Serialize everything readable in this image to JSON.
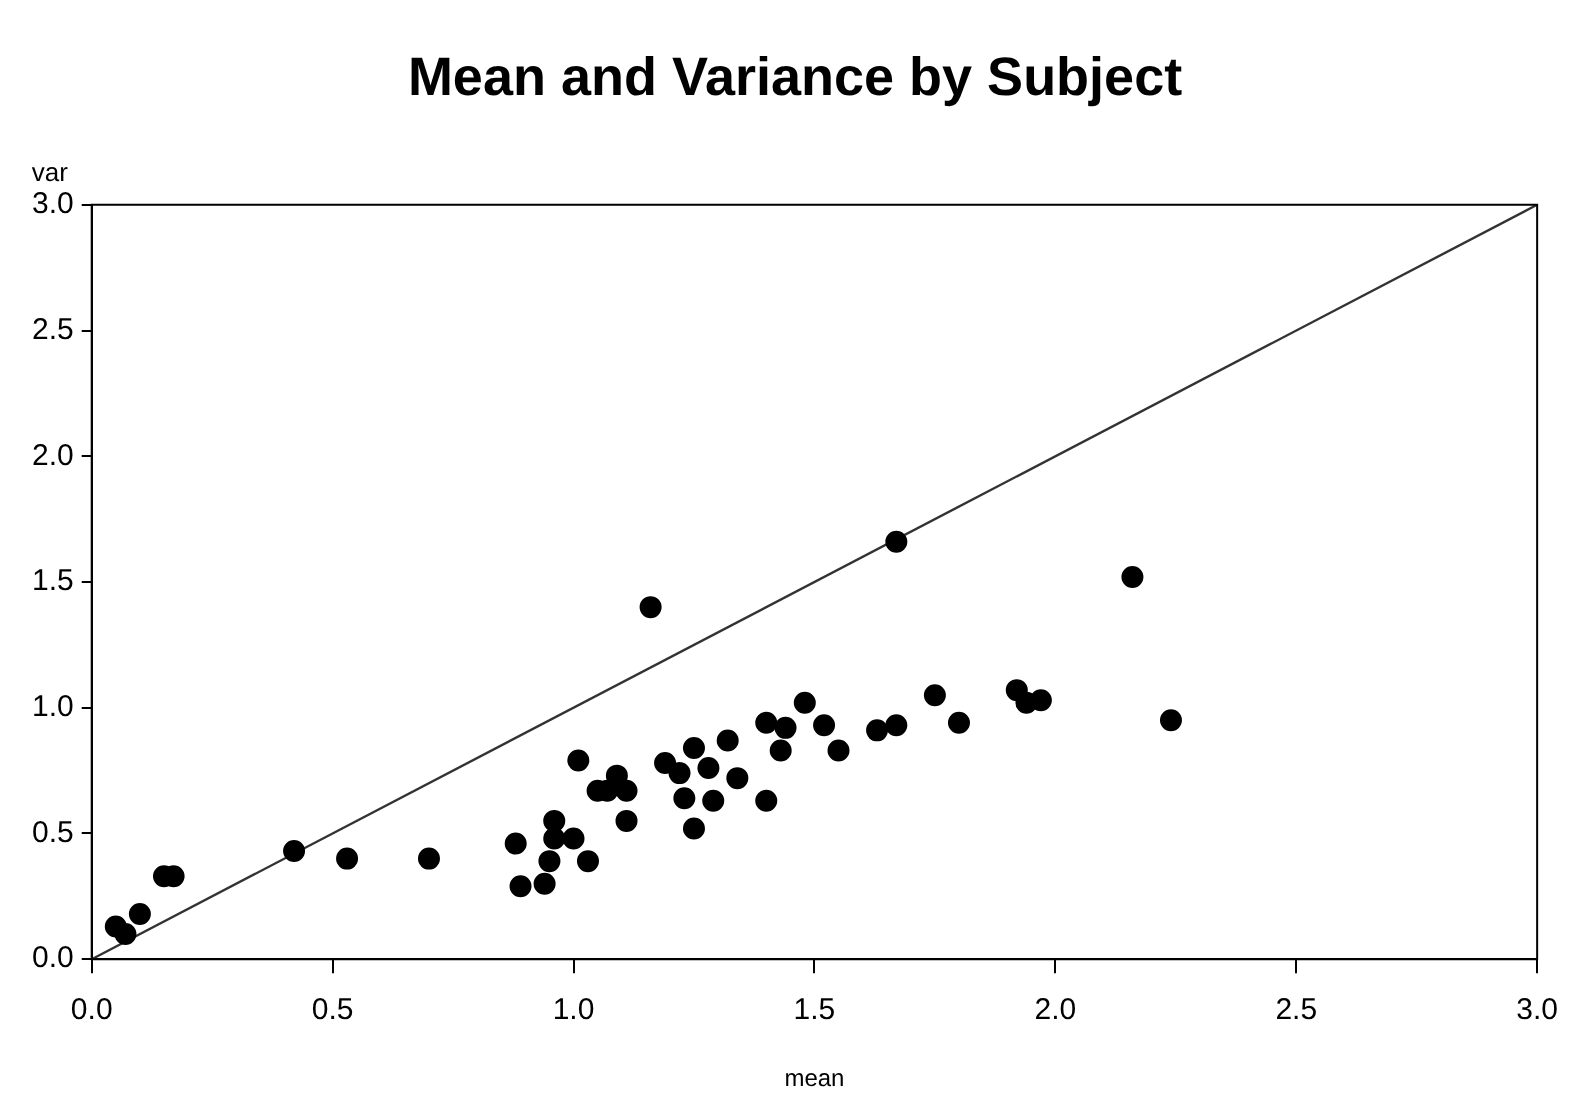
{
  "chart_data": {
    "type": "scatter",
    "title": "Mean and Variance by Subject",
    "xlabel": "mean",
    "ylabel": "var",
    "xlim": [
      0,
      3
    ],
    "ylim": [
      0,
      3
    ],
    "xticks": [
      {
        "value": 0,
        "label": "0.0"
      },
      {
        "value": 0.5,
        "label": "0.5"
      },
      {
        "value": 1,
        "label": "1.0"
      },
      {
        "value": 1.5,
        "label": "1.5"
      },
      {
        "value": 2,
        "label": "2.0"
      },
      {
        "value": 2.5,
        "label": "2.5"
      },
      {
        "value": 3,
        "label": "3.0"
      }
    ],
    "yticks": [
      {
        "value": 0,
        "label": "0.0"
      },
      {
        "value": 0.5,
        "label": "0.5"
      },
      {
        "value": 1,
        "label": "1.0"
      },
      {
        "value": 1.5,
        "label": "1.5"
      },
      {
        "value": 2,
        "label": "2.0"
      },
      {
        "value": 2.5,
        "label": "2.5"
      },
      {
        "value": 3,
        "label": "3.0"
      }
    ],
    "grid": false,
    "legend": false,
    "marker": "circle",
    "series": [
      {
        "type": "scatter",
        "color": "#000000",
        "x": [
          0.05,
          0.07,
          0.1,
          0.15,
          0.17,
          0.42,
          0.53,
          0.7,
          0.88,
          0.89,
          0.94,
          0.95,
          0.96,
          0.96,
          1.0,
          1.03,
          1.01,
          1.05,
          1.07,
          1.09,
          1.11,
          1.11,
          1.16,
          1.19,
          1.22,
          1.25,
          1.28,
          1.23,
          1.29,
          1.25,
          1.32,
          1.34,
          1.4,
          1.44,
          1.43,
          1.4,
          1.48,
          1.52,
          1.55,
          1.63,
          1.67,
          1.67,
          1.75,
          1.8,
          1.92,
          1.94,
          1.97,
          2.16,
          2.24
        ],
        "values": [
          0.13,
          0.1,
          0.18,
          0.33,
          0.33,
          0.43,
          0.4,
          0.4,
          0.46,
          0.29,
          0.3,
          0.39,
          0.48,
          0.55,
          0.48,
          0.39,
          0.79,
          0.67,
          0.67,
          0.73,
          0.67,
          0.55,
          1.4,
          0.78,
          0.74,
          0.84,
          0.76,
          0.64,
          0.63,
          0.52,
          0.87,
          0.72,
          0.94,
          0.92,
          0.83,
          0.63,
          1.02,
          0.93,
          0.83,
          0.91,
          0.93,
          1.66,
          1.05,
          0.94,
          1.07,
          1.02,
          1.03,
          1.52,
          0.95
        ]
      },
      {
        "type": "line",
        "color": "#333333",
        "marker": "none",
        "x": [
          0,
          3
        ],
        "values": [
          0,
          3
        ]
      }
    ]
  }
}
